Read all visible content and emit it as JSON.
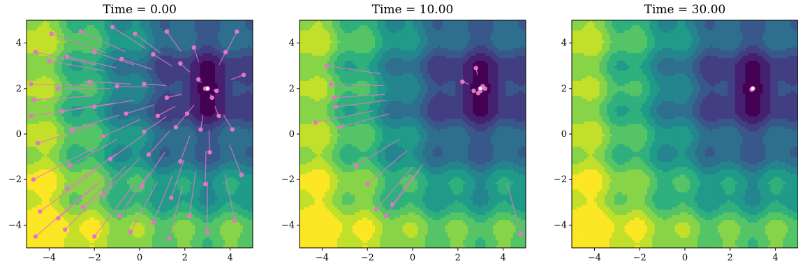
{
  "figure": {
    "panels": [
      {
        "title": "Time = 0.00"
      },
      {
        "title": "Time = 10.00"
      },
      {
        "title": "Time = 30.00"
      }
    ]
  },
  "chart_data": [
    {
      "type": "scatter",
      "title": "Time = 0.00",
      "xlim": [
        -5,
        5
      ],
      "ylim": [
        -5,
        5
      ],
      "xticks": [
        -4,
        -2,
        0,
        2,
        4
      ],
      "yticks": [
        -4,
        -2,
        0,
        2,
        4
      ],
      "background": "filled contour of an objective with global minimum near (3, 2), viridis colormap",
      "minimum": [
        3.0,
        2.0
      ],
      "particle_color": "#e377c2",
      "particles": [
        [
          2.9,
          2.0
        ],
        [
          3.4,
          1.9
        ],
        [
          3.2,
          1.6
        ],
        [
          2.6,
          2.4
        ],
        [
          3.8,
          3.6
        ],
        [
          2.4,
          3.8
        ],
        [
          1.2,
          4.5
        ],
        [
          -0.2,
          4.4
        ],
        [
          -1.2,
          4.7
        ],
        [
          -2.6,
          4.5
        ],
        [
          -3.9,
          4.4
        ],
        [
          -4.6,
          3.6
        ],
        [
          -4.0,
          3.2
        ],
        [
          -3.2,
          3.4
        ],
        [
          -2.0,
          3.6
        ],
        [
          -0.8,
          3.3
        ],
        [
          0.6,
          3.5
        ],
        [
          1.8,
          3.1
        ],
        [
          -4.8,
          2.2
        ],
        [
          -3.6,
          2.0
        ],
        [
          -2.2,
          2.3
        ],
        [
          -1.0,
          2.1
        ],
        [
          0.2,
          2.2
        ],
        [
          1.2,
          1.6
        ],
        [
          -4.7,
          1.5
        ],
        [
          -3.4,
          1.0
        ],
        [
          -2.0,
          1.2
        ],
        [
          -0.6,
          0.9
        ],
        [
          0.8,
          0.8
        ],
        [
          2.1,
          0.9
        ],
        [
          -4.8,
          0.8
        ],
        [
          -3.0,
          0.2
        ],
        [
          -1.6,
          -0.1
        ],
        [
          0.2,
          0.1
        ],
        [
          1.6,
          0.3
        ],
        [
          2.7,
          0.2
        ],
        [
          -4.5,
          -0.4
        ],
        [
          -3.1,
          -1.4
        ],
        [
          -1.3,
          -1.1
        ],
        [
          0.4,
          -0.9
        ],
        [
          1.8,
          -1.2
        ],
        [
          3.1,
          -0.8
        ],
        [
          -4.7,
          -2.0
        ],
        [
          -3.2,
          -2.4
        ],
        [
          -1.6,
          -2.7
        ],
        [
          0.1,
          -2.3
        ],
        [
          1.4,
          -2.8
        ],
        [
          2.9,
          -2.2
        ],
        [
          -4.4,
          -3.4
        ],
        [
          -3.6,
          -3.7
        ],
        [
          -2.5,
          -3.2
        ],
        [
          -0.9,
          -3.6
        ],
        [
          0.6,
          -3.9
        ],
        [
          2.2,
          -3.6
        ],
        [
          -4.6,
          -4.5
        ],
        [
          -3.3,
          -4.2
        ],
        [
          -2.0,
          -4.5
        ],
        [
          -0.4,
          -4.3
        ],
        [
          1.3,
          -4.6
        ],
        [
          3.0,
          -4.3
        ],
        [
          4.2,
          -3.8
        ],
        [
          4.5,
          -1.8
        ],
        [
          4.1,
          0.2
        ],
        [
          4.6,
          2.6
        ],
        [
          4.3,
          4.5
        ],
        [
          3.5,
          0.8
        ]
      ]
    },
    {
      "type": "scatter",
      "title": "Time = 10.00",
      "xlim": [
        -5,
        5
      ],
      "ylim": [
        -5,
        5
      ],
      "xticks": [
        -4,
        -2,
        0,
        2,
        4
      ],
      "yticks": [
        -4,
        -2,
        0,
        2,
        4
      ],
      "background": "filled contour of an objective with global minimum near (3, 2), viridis colormap",
      "minimum": [
        3.0,
        2.0
      ],
      "particle_color": "#e377c2",
      "particles": [
        [
          2.8,
          2.9
        ],
        [
          3.0,
          1.9
        ],
        [
          3.2,
          2.0
        ],
        [
          2.9,
          1.8
        ],
        [
          3.1,
          2.1
        ],
        [
          2.7,
          1.9
        ],
        [
          2.2,
          2.3
        ],
        [
          -3.6,
          2.2
        ],
        [
          -3.5,
          1.6
        ],
        [
          -3.4,
          1.2
        ],
        [
          -3.2,
          0.3
        ],
        [
          -4.3,
          0.5
        ],
        [
          -3.8,
          3.0
        ],
        [
          -2.5,
          -1.4
        ],
        [
          -2.0,
          -2.2
        ],
        [
          -1.6,
          -3.3
        ],
        [
          -1.2,
          -3.6
        ],
        [
          -0.9,
          -3.1
        ],
        [
          4.8,
          -4.4
        ]
      ]
    },
    {
      "type": "scatter",
      "title": "Time = 30.00",
      "xlim": [
        -5,
        5
      ],
      "ylim": [
        -5,
        5
      ],
      "xticks": [
        -4,
        -2,
        0,
        2,
        4
      ],
      "yticks": [
        -4,
        -2,
        0,
        2,
        4
      ],
      "background": "filled contour of an objective with global minimum near (3, 2), viridis colormap",
      "minimum": [
        3.0,
        2.0
      ],
      "particle_color": "#e377c2",
      "particles": [
        [
          3.0,
          2.0
        ],
        [
          2.95,
          1.95
        ]
      ]
    }
  ]
}
